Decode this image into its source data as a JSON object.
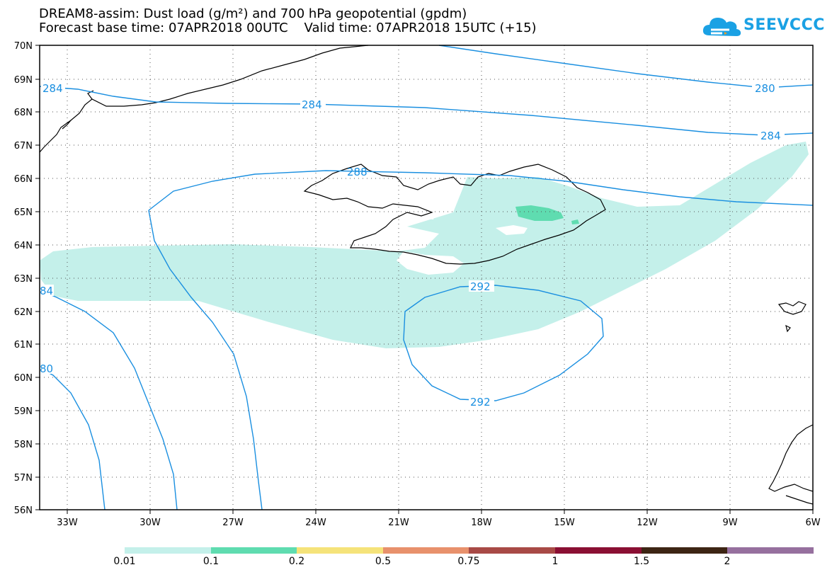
{
  "title": {
    "line1": "DREAM8-assim: Dust load (g/m²) and 700 hPa geopotential (gpdm)",
    "line2": "Forecast base time: 07APR2018 00UTC    Valid time: 07APR2018 15UTC (+15)"
  },
  "logo": {
    "text": "SEEVCCC"
  },
  "axes": {
    "lat_labels": [
      "70N",
      "69N",
      "68N",
      "67N",
      "66N",
      "65N",
      "64N",
      "63N",
      "62N",
      "61N",
      "60N",
      "59N",
      "58N",
      "57N",
      "56N"
    ],
    "lon_labels": [
      "33W",
      "30W",
      "27W",
      "24W",
      "21W",
      "18W",
      "15W",
      "12W",
      "9W",
      "6W"
    ]
  },
  "contours": {
    "labels": [
      "284",
      "284",
      "284",
      "280",
      "284",
      "288",
      "292",
      "292",
      "84",
      "80"
    ]
  },
  "colorbar": {
    "labels": [
      "0.01",
      "0.1",
      "0.2",
      "0.5",
      "0.75",
      "1",
      "1.5",
      "2"
    ],
    "colors": [
      "#c4f0ea",
      "#5fdcb0",
      "#f5e37a",
      "#e8916c",
      "#a84a46",
      "#8a0f33",
      "#3d2514",
      "#96709e"
    ]
  },
  "colors": {
    "dust_light": "#c4f0ea",
    "dust_mid": "#5fdcb0",
    "contour": "#1a8fe0"
  }
}
